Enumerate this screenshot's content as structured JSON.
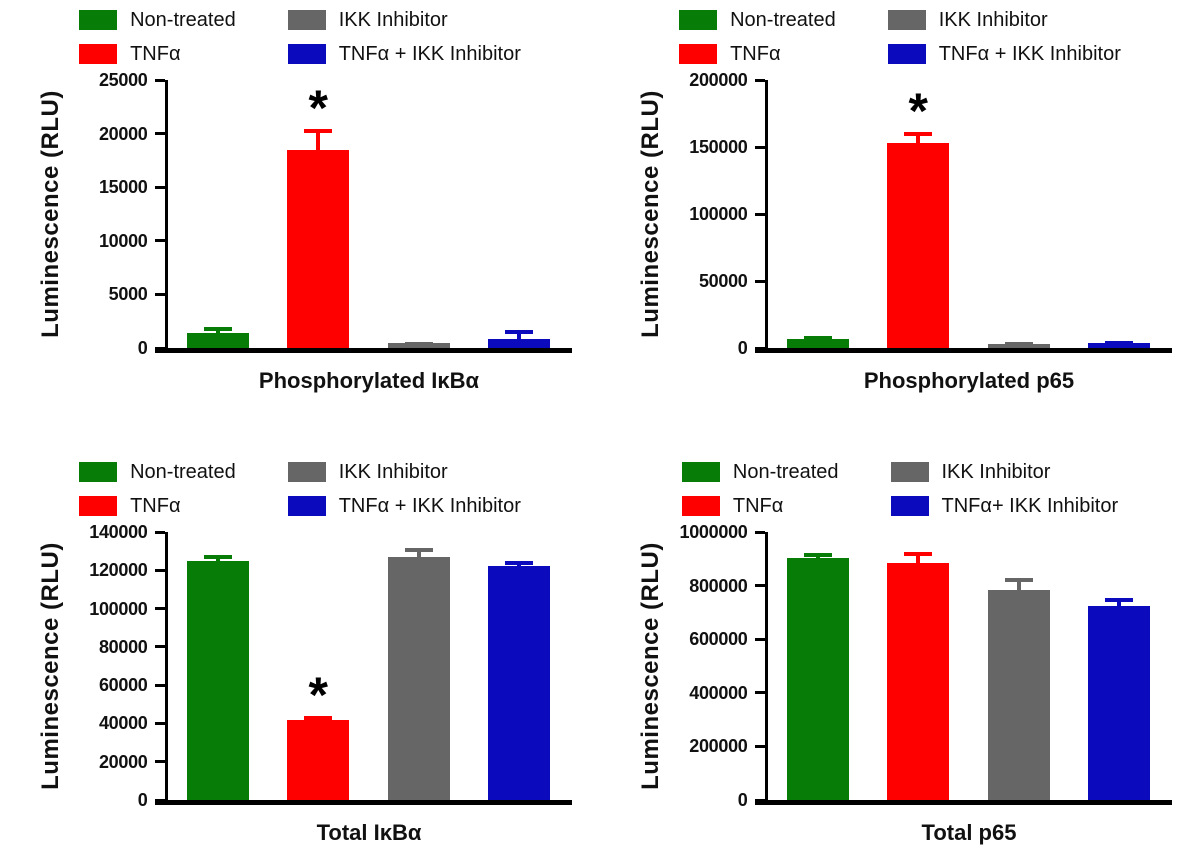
{
  "figure": {
    "background": "#ffffff",
    "axis_color": "#000000",
    "grid": false,
    "legend_position": "top"
  },
  "chart_data": [
    {
      "type": "bar",
      "title": "Phosphorylated IκBα",
      "ylabel": "Luminescence (RLU)",
      "ymax": 25000,
      "yticks": [
        0,
        5000,
        10000,
        15000,
        20000,
        25000
      ],
      "legend_order": [
        0,
        2,
        1,
        3
      ],
      "series": [
        {
          "label": "Non-treated",
          "color": "#077d07",
          "value": 1400,
          "error": 550,
          "sig": ""
        },
        {
          "label": "TNFα",
          "color": "#ff0000",
          "value": 18500,
          "error": 1900,
          "sig": "*"
        },
        {
          "label": "IKK Inhibitor",
          "color": "#666666",
          "value": 450,
          "error": 120,
          "sig": ""
        },
        {
          "label": "TNFα + IKK Inhibitor",
          "color": "#0b0bbd",
          "value": 800,
          "error": 850,
          "sig": ""
        }
      ]
    },
    {
      "type": "bar",
      "title": "Phosphorylated p65",
      "ylabel": "Luminescence (RLU)",
      "ymax": 200000,
      "yticks": [
        0,
        50000,
        100000,
        150000,
        200000
      ],
      "legend_order": [
        0,
        2,
        1,
        3
      ],
      "series": [
        {
          "label": "Non-treated",
          "color": "#077d07",
          "value": 7000,
          "error": 1800,
          "sig": ""
        },
        {
          "label": "TNFα",
          "color": "#ff0000",
          "value": 153000,
          "error": 8000,
          "sig": "*"
        },
        {
          "label": "IKK Inhibitor",
          "color": "#666666",
          "value": 3000,
          "error": 1500,
          "sig": ""
        },
        {
          "label": "TNFα + IKK Inhibitor",
          "color": "#0b0bbd",
          "value": 4000,
          "error": 1500,
          "sig": ""
        }
      ]
    },
    {
      "type": "bar",
      "title": "Total IκBα",
      "ylabel": "Luminescence (RLU)",
      "ymax": 140000,
      "yticks": [
        0,
        20000,
        40000,
        60000,
        80000,
        100000,
        120000,
        140000
      ],
      "legend_order": [
        0,
        2,
        1,
        3
      ],
      "series": [
        {
          "label": "Non-treated",
          "color": "#077d07",
          "value": 125000,
          "error": 3000,
          "sig": ""
        },
        {
          "label": "TNFα",
          "color": "#ff0000",
          "value": 42000,
          "error": 2000,
          "sig": "*"
        },
        {
          "label": "IKK Inhibitor",
          "color": "#666666",
          "value": 127000,
          "error": 4500,
          "sig": ""
        },
        {
          "label": "TNFα + IKK Inhibitor",
          "color": "#0b0bbd",
          "value": 122500,
          "error": 2500,
          "sig": ""
        }
      ]
    },
    {
      "type": "bar",
      "title": "Total p65",
      "ylabel": "Luminescence (RLU)",
      "ymax": 1000000,
      "yticks": [
        0,
        200000,
        400000,
        600000,
        800000,
        1000000
      ],
      "legend_order": [
        0,
        2,
        1,
        3
      ],
      "series": [
        {
          "label": "Non-treated",
          "color": "#077d07",
          "value": 903000,
          "error": 18000,
          "sig": ""
        },
        {
          "label": "TNFα",
          "color": "#ff0000",
          "value": 885000,
          "error": 40000,
          "sig": ""
        },
        {
          "label": "IKK Inhibitor",
          "color": "#666666",
          "value": 785000,
          "error": 44000,
          "sig": ""
        },
        {
          "label": "TNFα+ IKK Inhibitor",
          "color": "#0b0bbd",
          "value": 724000,
          "error": 29000,
          "sig": ""
        }
      ]
    }
  ]
}
